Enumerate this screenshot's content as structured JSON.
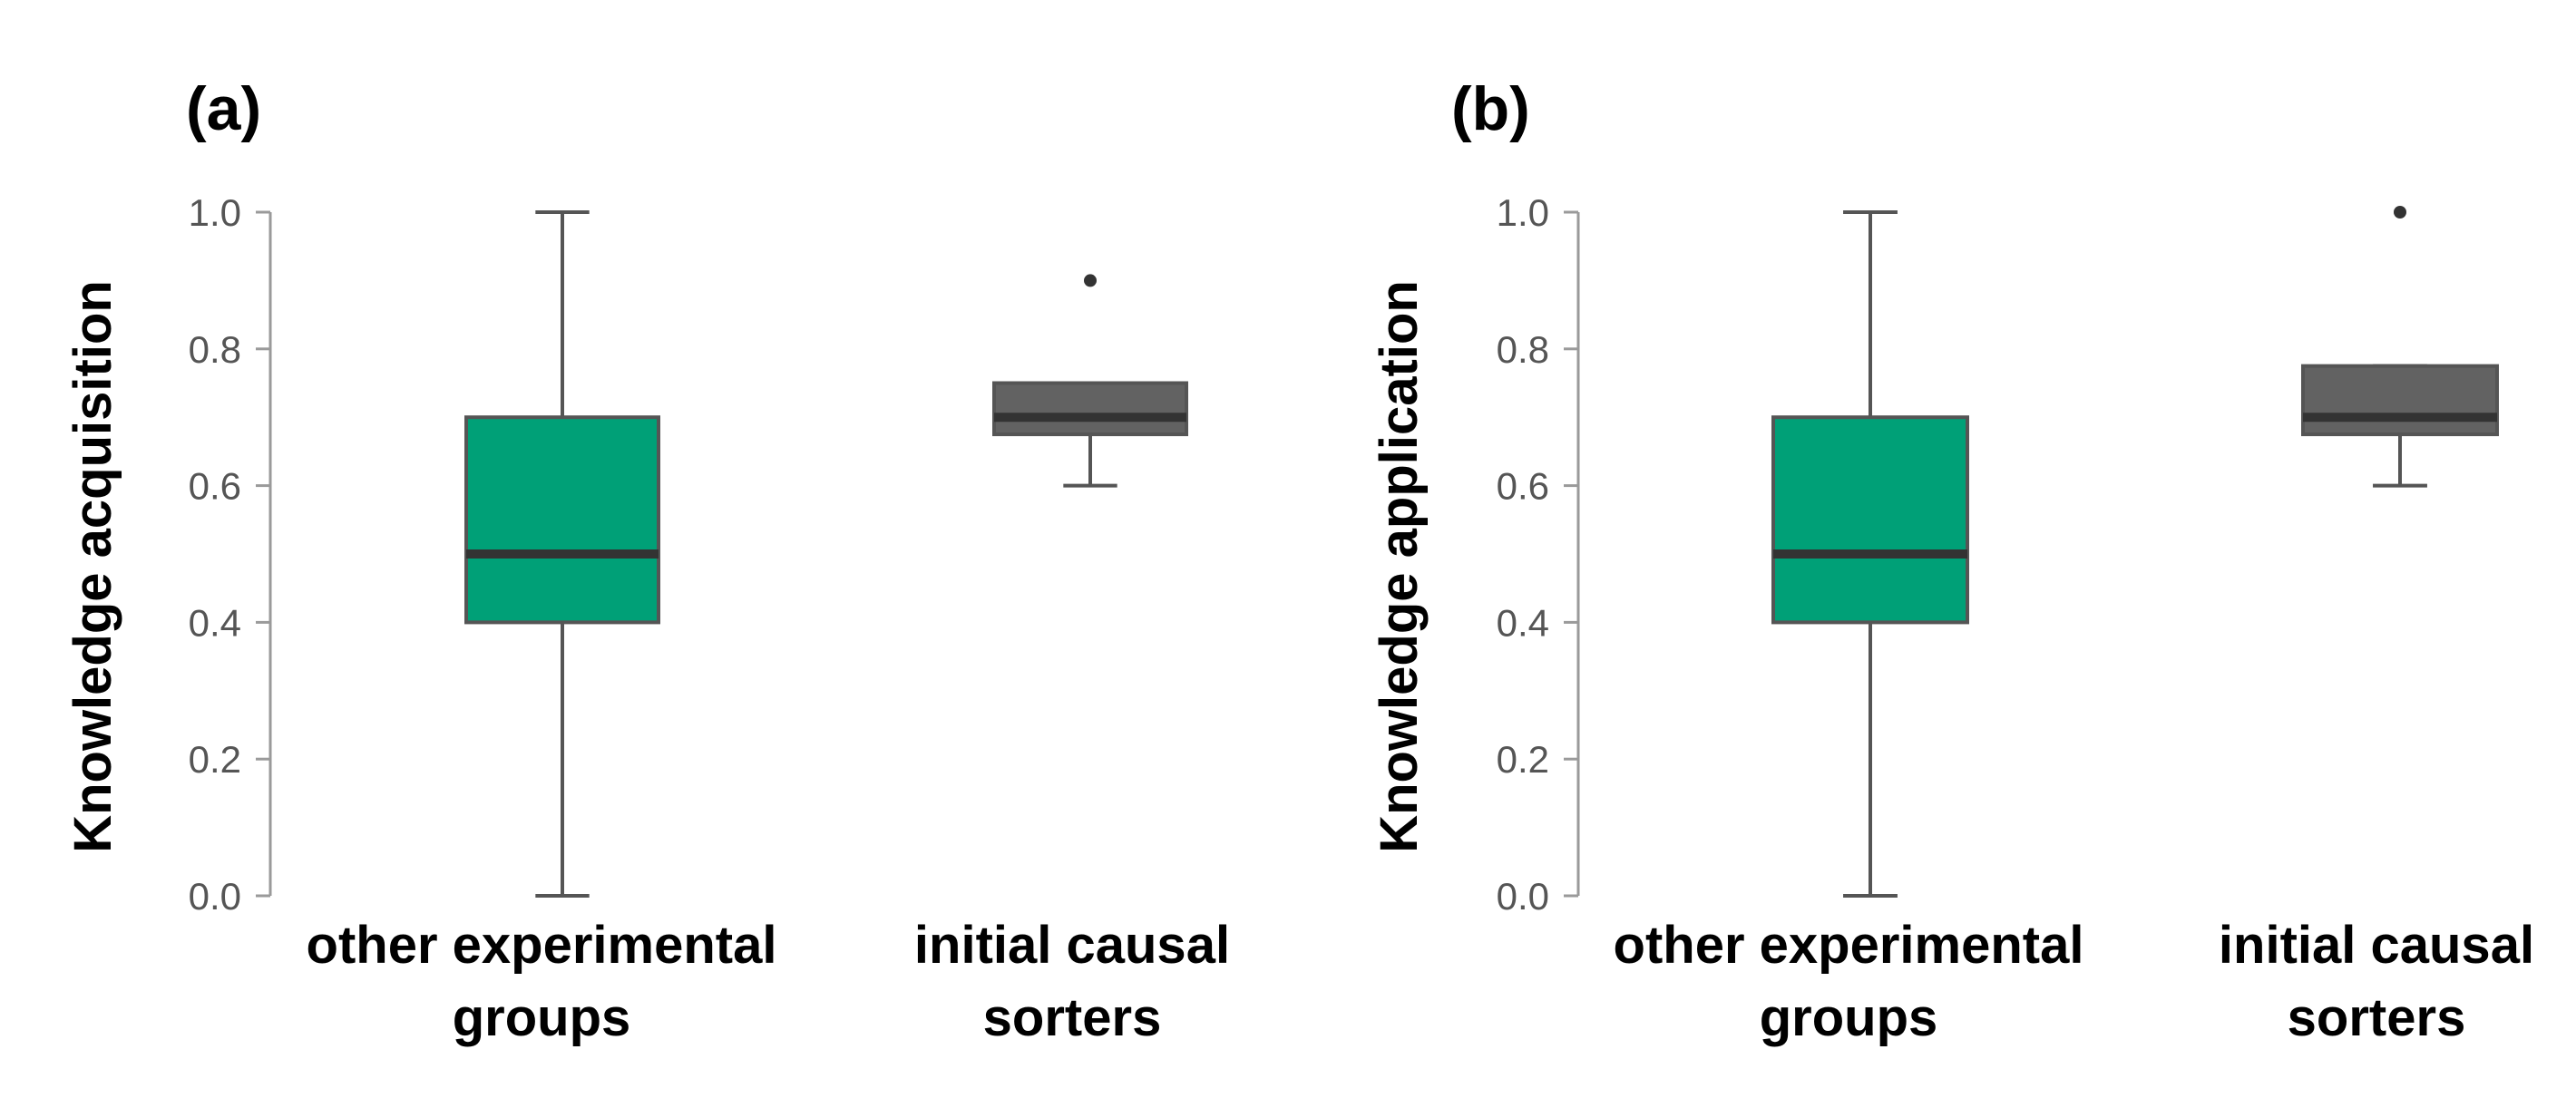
{
  "chart_data": [
    {
      "type": "box",
      "panel": "(a)",
      "ylabel": "Knowledge acquisition",
      "ylim": [
        0,
        1
      ],
      "yticks": [
        "0.0",
        "0.2",
        "0.4",
        "0.6",
        "0.8",
        "1.0"
      ],
      "categories": [
        {
          "line1": "other experimental",
          "line2": "groups"
        },
        {
          "line1": "initial causal",
          "line2": "sorters"
        }
      ],
      "boxes": [
        {
          "min": 0.0,
          "q1": 0.4,
          "median": 0.5,
          "q3": 0.7,
          "max": 1.0,
          "outliers": [],
          "color": "#00a077"
        },
        {
          "min": 0.6,
          "q1": 0.675,
          "median": 0.7,
          "q3": 0.75,
          "max": 0.75,
          "outliers": [
            0.9
          ],
          "color": "#626262"
        }
      ]
    },
    {
      "type": "box",
      "panel": "(b)",
      "ylabel": "Knowledge application",
      "ylim": [
        0,
        1
      ],
      "yticks": [
        "0.0",
        "0.2",
        "0.4",
        "0.6",
        "0.8",
        "1.0"
      ],
      "categories": [
        {
          "line1": "other experimental",
          "line2": "groups"
        },
        {
          "line1": "initial causal",
          "line2": "sorters"
        }
      ],
      "boxes": [
        {
          "min": 0.0,
          "q1": 0.4,
          "median": 0.5,
          "q3": 0.7,
          "max": 1.0,
          "outliers": [],
          "color": "#00a077"
        },
        {
          "min": 0.6,
          "q1": 0.675,
          "median": 0.7,
          "q3": 0.775,
          "max": 0.775,
          "outliers": [
            1.0
          ],
          "color": "#626262"
        }
      ]
    }
  ],
  "colors": {
    "whisker": "#555555",
    "median": "#333333",
    "axis": "#9a9a9a",
    "outlier": "#333333"
  }
}
